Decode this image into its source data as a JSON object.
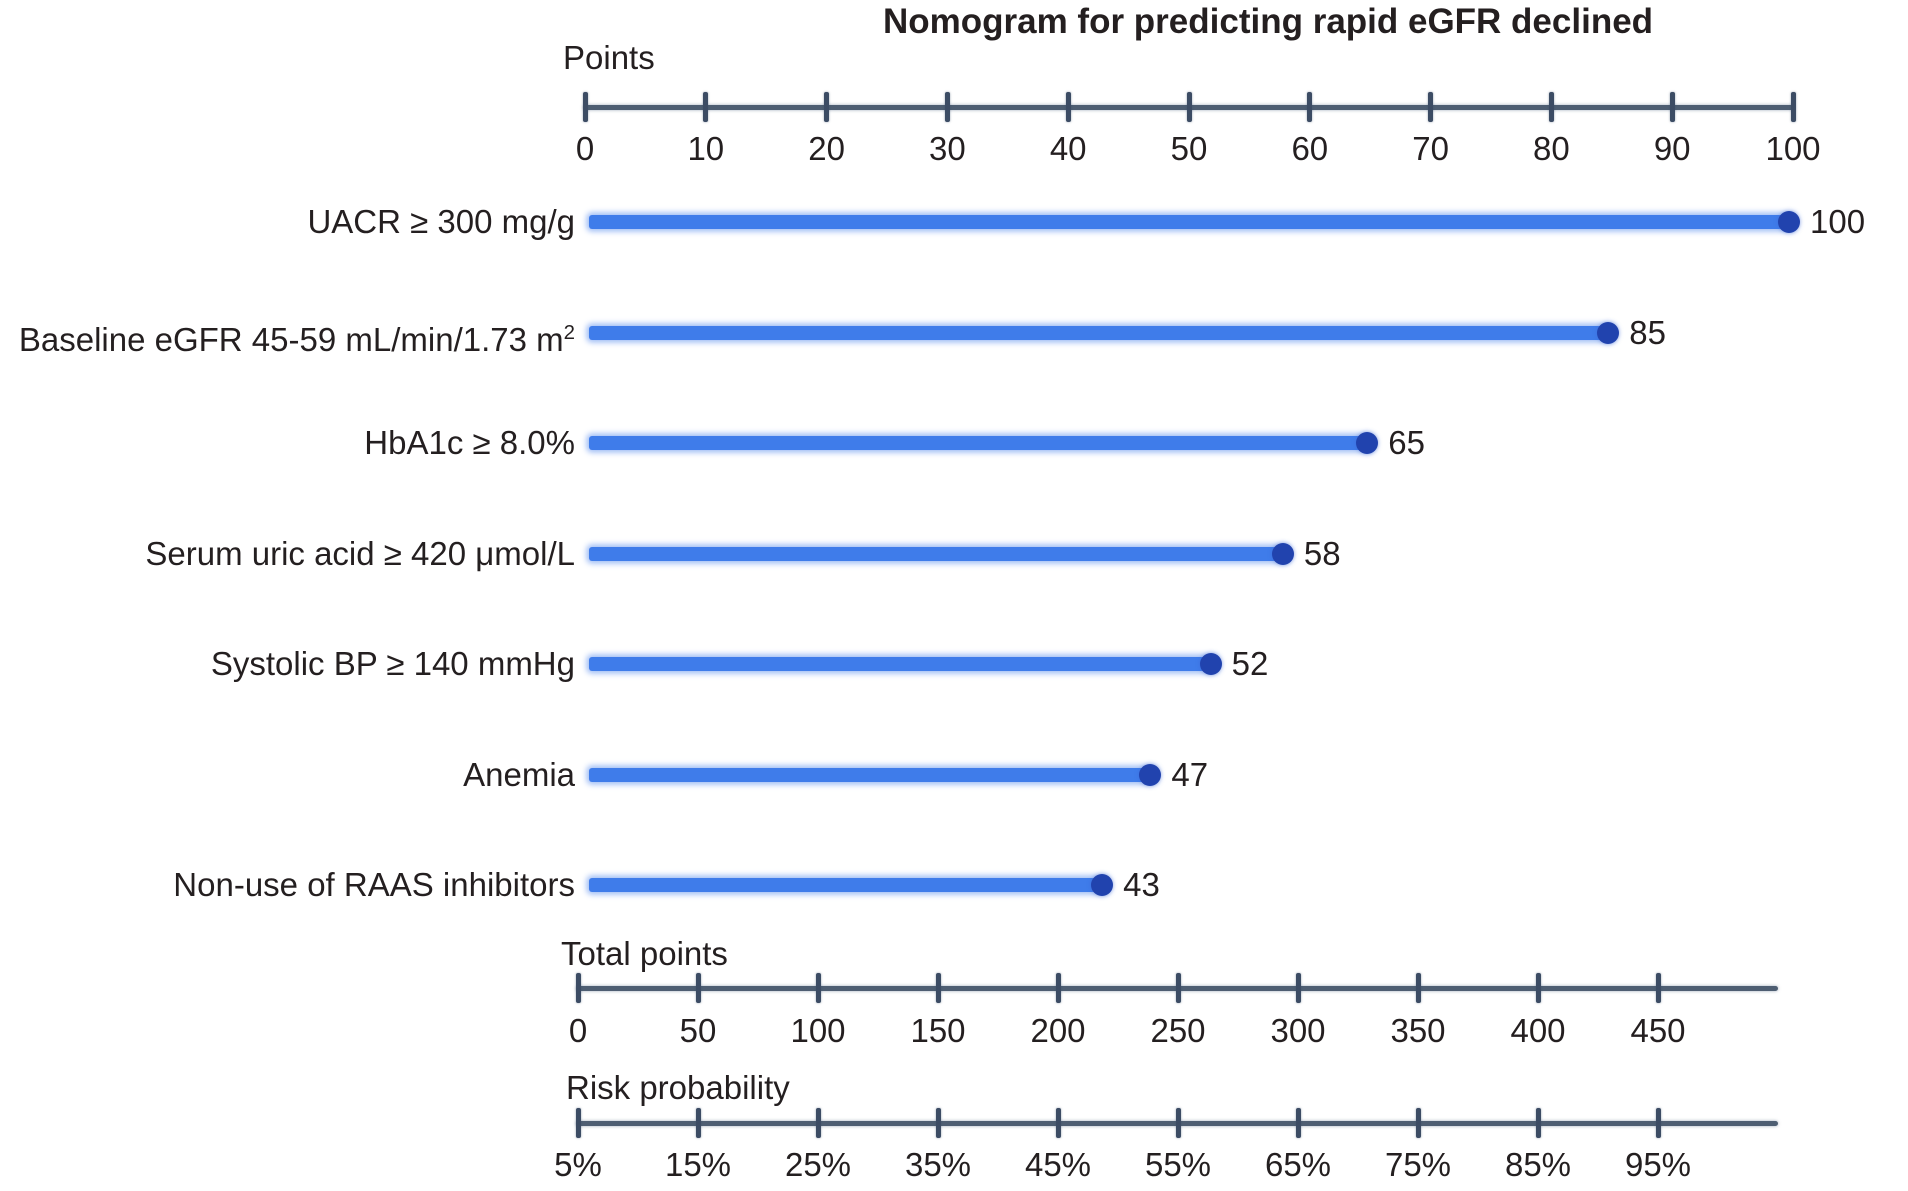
{
  "title": "Nomogram for predicting rapid eGFR declined",
  "colors": {
    "bar": "#3f7cea",
    "bar_glow": "#9cbcf2",
    "dot": "#2143ae",
    "axis_line": "#4e5e72",
    "tick": "#3c4c64",
    "text": "#241f20"
  },
  "chart_data": {
    "type": "bar",
    "orientation": "horizontal",
    "title": "Nomogram for predicting rapid eGFR declined",
    "points_axis": {
      "label": "Points",
      "range": [
        0,
        100
      ],
      "ticks": [
        "0",
        "10",
        "20",
        "30",
        "40",
        "50",
        "60",
        "70",
        "80",
        "90",
        "100"
      ]
    },
    "rows": [
      {
        "category": "UACR ≥ 300 mg/g",
        "value": 100,
        "value_label": "100"
      },
      {
        "category": "Baseline eGFR 45-59 mL/min/1.73 m",
        "category_sup": "2",
        "value": 85,
        "value_label": "85"
      },
      {
        "category": "HbA1c ≥ 8.0%",
        "value": 65,
        "value_label": "65"
      },
      {
        "category": "Serum uric acid ≥ 420 μmol/L",
        "value": 58,
        "value_label": "58"
      },
      {
        "category": "Systolic BP ≥ 140 mmHg",
        "value": 52,
        "value_label": "52"
      },
      {
        "category": "Anemia",
        "value": 47,
        "value_label": "47"
      },
      {
        "category": "Non-use of RAAS inhibitors",
        "value": 43,
        "value_label": "43"
      }
    ],
    "total_points_axis": {
      "label": "Total points",
      "ticks": [
        "0",
        "50",
        "100",
        "150",
        "200",
        "250",
        "300",
        "350",
        "400",
        "450"
      ]
    },
    "risk_axis": {
      "label": "Risk probability",
      "ticks": [
        "5%",
        "15%",
        "25%",
        "35%",
        "45%",
        "55%",
        "65%",
        "75%",
        "85%",
        "95%"
      ]
    },
    "legend": "none",
    "grid": false
  }
}
